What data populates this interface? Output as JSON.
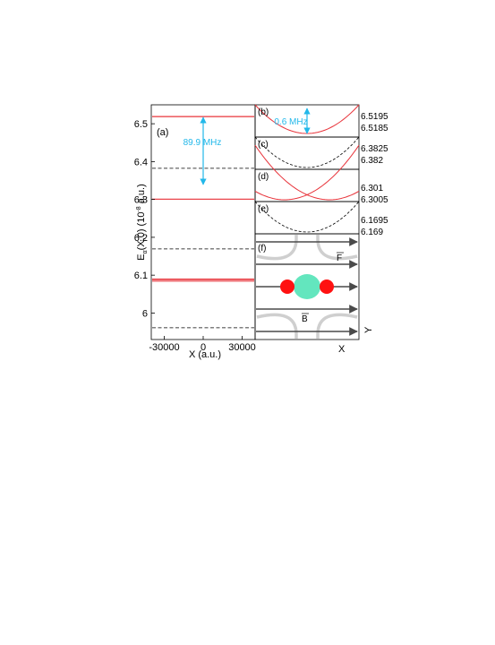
{
  "colors": {
    "red": "#e8343b",
    "dashed": "#000000",
    "cyan": "#22b8ea",
    "arrow": "#4a4a4a",
    "ellipse": "#cfcfcf",
    "blob": "#63e6be",
    "dot": "#ff1111"
  },
  "chart_data": [
    {
      "panel": "(a)",
      "type": "line",
      "xlabel": "X (a.u.)",
      "ylabel": "E_α(X,0)  (10^-8 a.u.)",
      "ylabel_main": "E",
      "ylabel_sub": "α",
      "ylabel_rest": "(X,0)  (10",
      "ylabel_sup": "-8",
      "ylabel_end": " a.u.)",
      "xlim": [
        -40000,
        40000
      ],
      "ylim": [
        5.93,
        6.55
      ],
      "xticks": [
        -30000,
        0,
        30000
      ],
      "xtick_labels": [
        "-30000",
        "0",
        "30000"
      ],
      "yticks": [
        6,
        6.1,
        6.2,
        6.3,
        6.4,
        6.5
      ],
      "ytick_labels": [
        "6",
        "6.1",
        "6.2",
        "6.3",
        "6.4",
        "6.5"
      ],
      "annotation": "89.9 MHz",
      "arrow_between": [
        6.3,
        6.52
      ],
      "series": [
        {
          "style": "solid-red",
          "y": 6.5185
        },
        {
          "style": "solid-red",
          "y": 6.5195
        },
        {
          "style": "dashed",
          "y": 6.3823
        },
        {
          "style": "solid-red",
          "y": 6.3005
        },
        {
          "style": "solid-red",
          "y": 6.301
        },
        {
          "style": "dashed",
          "y": 6.1693
        },
        {
          "style": "solid-red",
          "y": 6.084
        },
        {
          "style": "solid-red",
          "y": 6.087
        },
        {
          "style": "solid-red",
          "y": 6.09
        },
        {
          "style": "dashed",
          "y": 5.961
        }
      ]
    },
    {
      "panel": "(b)",
      "type": "line",
      "yticks_right": [
        "6.5195",
        "6.5185"
      ],
      "annotation": "0.6 MHz",
      "series": [
        {
          "style": "solid-red",
          "shape": "parabola"
        }
      ]
    },
    {
      "panel": "(c)",
      "type": "line",
      "yticks_right": [
        "6.3825",
        "6.382"
      ],
      "series": [
        {
          "style": "dashed",
          "shape": "parabola"
        }
      ]
    },
    {
      "panel": "(d)",
      "type": "line",
      "yticks_right": [
        "6.301",
        "6.3005"
      ],
      "series": [
        {
          "style": "solid-red",
          "shape": "parabola-left"
        },
        {
          "style": "solid-red",
          "shape": "parabola-right"
        }
      ]
    },
    {
      "panel": "(e)",
      "type": "line",
      "yticks_right": [
        "6.1695",
        "6.169"
      ],
      "series": [
        {
          "style": "dashed",
          "shape": "parabola"
        }
      ]
    }
  ],
  "schematic": {
    "panel": "(f)",
    "f_label": "F",
    "b_label": "B",
    "x_label": "X",
    "y_label": "Y"
  }
}
